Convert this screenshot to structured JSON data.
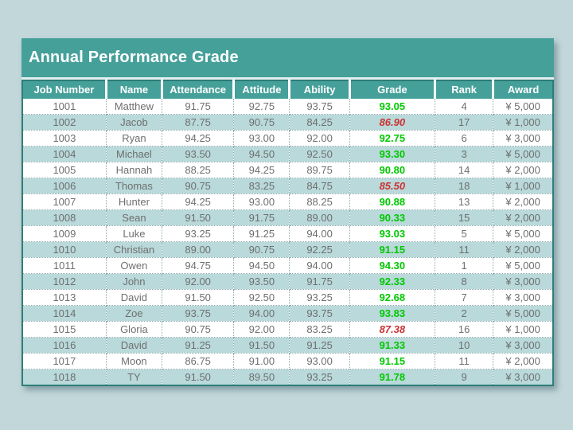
{
  "title": "Annual Performance Grade",
  "colors": {
    "page_background": "#c2d7da",
    "band_teal": "#46a09a",
    "row_alt_teal": "#b9d9da",
    "row_white": "#ffffff",
    "table_border": "#2e7d78",
    "header_text": "#ffffff",
    "body_text": "#6f6f6f",
    "grade_pass_green": "#00c800",
    "grade_fail_red": "#cc3333"
  },
  "table": {
    "columns": [
      "Job Number",
      "Name",
      "Attendance",
      "Attitude",
      "Ability",
      "Grade",
      "Rank",
      "Award"
    ],
    "rows": [
      {
        "job_number": "1001",
        "name": "Matthew",
        "attendance": "91.75",
        "attitude": "92.75",
        "ability": "93.75",
        "grade": "93.05",
        "grade_status": "pass",
        "rank": "4",
        "award": "¥ 5,000"
      },
      {
        "job_number": "1002",
        "name": "Jacob",
        "attendance": "87.75",
        "attitude": "90.75",
        "ability": "84.25",
        "grade": "86.90",
        "grade_status": "fail",
        "rank": "17",
        "award": "¥ 1,000"
      },
      {
        "job_number": "1003",
        "name": "Ryan",
        "attendance": "94.25",
        "attitude": "93.00",
        "ability": "92.00",
        "grade": "92.75",
        "grade_status": "pass",
        "rank": "6",
        "award": "¥ 3,000"
      },
      {
        "job_number": "1004",
        "name": "Michael",
        "attendance": "93.50",
        "attitude": "94.50",
        "ability": "92.50",
        "grade": "93.30",
        "grade_status": "pass",
        "rank": "3",
        "award": "¥ 5,000"
      },
      {
        "job_number": "1005",
        "name": "Hannah",
        "attendance": "88.25",
        "attitude": "94.25",
        "ability": "89.75",
        "grade": "90.80",
        "grade_status": "pass",
        "rank": "14",
        "award": "¥ 2,000"
      },
      {
        "job_number": "1006",
        "name": "Thomas",
        "attendance": "90.75",
        "attitude": "83.25",
        "ability": "84.75",
        "grade": "85.50",
        "grade_status": "fail",
        "rank": "18",
        "award": "¥ 1,000"
      },
      {
        "job_number": "1007",
        "name": "Hunter",
        "attendance": "94.25",
        "attitude": "93.00",
        "ability": "88.25",
        "grade": "90.88",
        "grade_status": "pass",
        "rank": "13",
        "award": "¥ 2,000"
      },
      {
        "job_number": "1008",
        "name": "Sean",
        "attendance": "91.50",
        "attitude": "91.75",
        "ability": "89.00",
        "grade": "90.33",
        "grade_status": "pass",
        "rank": "15",
        "award": "¥ 2,000"
      },
      {
        "job_number": "1009",
        "name": "Luke",
        "attendance": "93.25",
        "attitude": "91.25",
        "ability": "94.00",
        "grade": "93.03",
        "grade_status": "pass",
        "rank": "5",
        "award": "¥ 5,000"
      },
      {
        "job_number": "1010",
        "name": "Christian",
        "attendance": "89.00",
        "attitude": "90.75",
        "ability": "92.25",
        "grade": "91.15",
        "grade_status": "pass",
        "rank": "11",
        "award": "¥ 2,000"
      },
      {
        "job_number": "1011",
        "name": "Owen",
        "attendance": "94.75",
        "attitude": "94.50",
        "ability": "94.00",
        "grade": "94.30",
        "grade_status": "pass",
        "rank": "1",
        "award": "¥ 5,000"
      },
      {
        "job_number": "1012",
        "name": "John",
        "attendance": "92.00",
        "attitude": "93.50",
        "ability": "91.75",
        "grade": "92.33",
        "grade_status": "pass",
        "rank": "8",
        "award": "¥ 3,000"
      },
      {
        "job_number": "1013",
        "name": "David",
        "attendance": "91.50",
        "attitude": "92.50",
        "ability": "93.25",
        "grade": "92.68",
        "grade_status": "pass",
        "rank": "7",
        "award": "¥ 3,000"
      },
      {
        "job_number": "1014",
        "name": "Zoe",
        "attendance": "93.75",
        "attitude": "94.00",
        "ability": "93.75",
        "grade": "93.83",
        "grade_status": "pass",
        "rank": "2",
        "award": "¥ 5,000"
      },
      {
        "job_number": "1015",
        "name": "Gloria",
        "attendance": "90.75",
        "attitude": "92.00",
        "ability": "83.25",
        "grade": "87.38",
        "grade_status": "fail",
        "rank": "16",
        "award": "¥ 1,000"
      },
      {
        "job_number": "1016",
        "name": "David",
        "attendance": "91.25",
        "attitude": "91.50",
        "ability": "91.25",
        "grade": "91.33",
        "grade_status": "pass",
        "rank": "10",
        "award": "¥ 3,000"
      },
      {
        "job_number": "1017",
        "name": "Moon",
        "attendance": "86.75",
        "attitude": "91.00",
        "ability": "93.00",
        "grade": "91.15",
        "grade_status": "pass",
        "rank": "11",
        "award": "¥ 2,000"
      },
      {
        "job_number": "1018",
        "name": "TY",
        "attendance": "91.50",
        "attitude": "89.50",
        "ability": "93.25",
        "grade": "91.78",
        "grade_status": "pass",
        "rank": "9",
        "award": "¥ 3,000"
      }
    ]
  }
}
